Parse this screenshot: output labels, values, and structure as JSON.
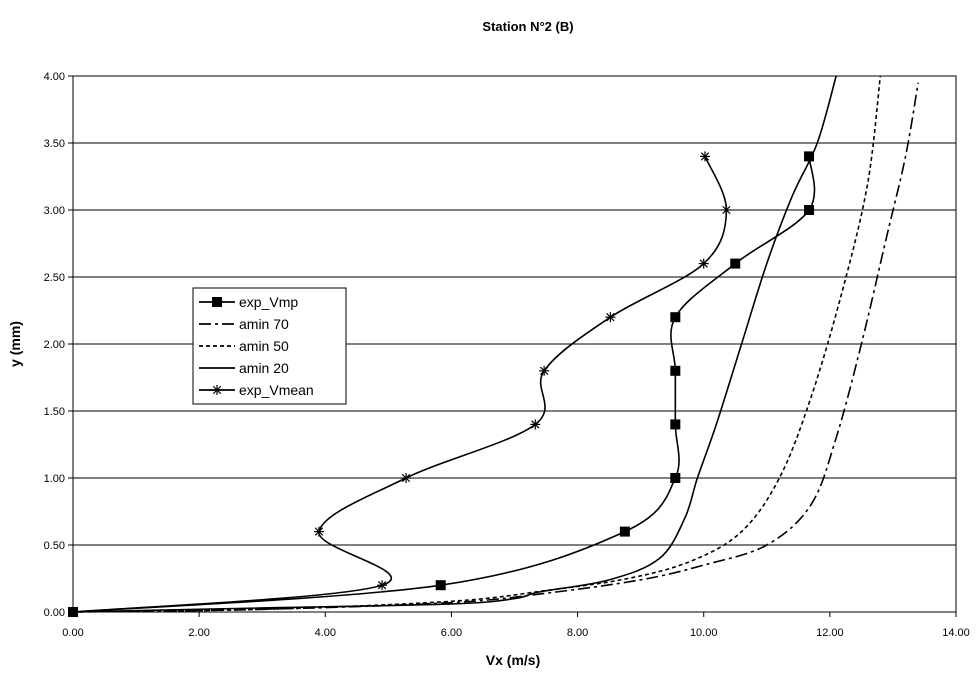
{
  "chart_data": {
    "type": "line",
    "title": "Station N°2 (B)",
    "xlabel": "Vx (m/s)",
    "ylabel": "y (mm)",
    "xlim": [
      0,
      14
    ],
    "ylim": [
      0,
      4
    ],
    "x_ticks": [
      "0.00",
      "2.00",
      "4.00",
      "6.00",
      "8.00",
      "10.00",
      "12.00",
      "14.00"
    ],
    "y_ticks": [
      "0.00",
      "0.50",
      "1.00",
      "1.50",
      "2.00",
      "2.50",
      "3.00",
      "3.50",
      "4.00"
    ],
    "grid": "horizontal",
    "legend_position": "left",
    "series": [
      {
        "name": "exp_Vmp",
        "style": "solid",
        "marker": "square",
        "color": "#000000",
        "points": [
          [
            0,
            0
          ],
          [
            5.83,
            0.2
          ],
          [
            8.75,
            0.6
          ],
          [
            9.55,
            1.0
          ],
          [
            9.55,
            1.4
          ],
          [
            9.55,
            1.8
          ],
          [
            9.55,
            2.2
          ],
          [
            10.5,
            2.6
          ],
          [
            11.67,
            3.0
          ],
          [
            11.67,
            3.4
          ]
        ]
      },
      {
        "name": "amin 70",
        "style": "dashdot",
        "marker": "none",
        "color": "#000000",
        "points": [
          [
            0,
            0
          ],
          [
            3,
            0.02
          ],
          [
            6,
            0.07
          ],
          [
            7.5,
            0.14
          ],
          [
            9,
            0.24
          ],
          [
            10,
            0.35
          ],
          [
            11,
            0.5
          ],
          [
            11.7,
            0.8
          ],
          [
            12.1,
            1.3
          ],
          [
            12.5,
            2.0
          ],
          [
            12.9,
            2.8
          ],
          [
            13.2,
            3.4
          ],
          [
            13.4,
            3.95
          ]
        ]
      },
      {
        "name": "amin 50",
        "style": "dotted",
        "marker": "none",
        "color": "#000000",
        "points": [
          [
            0,
            0
          ],
          [
            3,
            0.02
          ],
          [
            6,
            0.08
          ],
          [
            7.5,
            0.16
          ],
          [
            8.8,
            0.25
          ],
          [
            9.8,
            0.38
          ],
          [
            10.6,
            0.6
          ],
          [
            11.2,
            1.0
          ],
          [
            11.7,
            1.6
          ],
          [
            12.2,
            2.4
          ],
          [
            12.6,
            3.2
          ],
          [
            12.8,
            4.0
          ]
        ]
      },
      {
        "name": "amin 20",
        "style": "solid",
        "marker": "none",
        "color": "#000000",
        "points": [
          [
            0,
            0
          ],
          [
            3,
            0.03
          ],
          [
            6,
            0.06
          ],
          [
            7,
            0.1
          ],
          [
            7.4,
            0.15
          ],
          [
            8.5,
            0.24
          ],
          [
            9.3,
            0.4
          ],
          [
            9.7,
            0.7
          ],
          [
            9.9,
            1.0
          ],
          [
            10.2,
            1.4
          ],
          [
            10.6,
            2.0
          ],
          [
            11.0,
            2.6
          ],
          [
            11.4,
            3.1
          ],
          [
            11.8,
            3.5
          ],
          [
            12.1,
            4.0
          ]
        ]
      },
      {
        "name": "exp_Vmean",
        "style": "solid",
        "marker": "star",
        "color": "#000000",
        "points": [
          [
            0,
            0
          ],
          [
            4.9,
            0.2
          ],
          [
            3.9,
            0.6
          ],
          [
            5.28,
            1.0
          ],
          [
            7.33,
            1.4
          ],
          [
            7.47,
            1.8
          ],
          [
            8.52,
            2.2
          ],
          [
            10.0,
            2.6
          ],
          [
            10.36,
            3.0
          ],
          [
            10.02,
            3.4
          ]
        ]
      }
    ]
  }
}
